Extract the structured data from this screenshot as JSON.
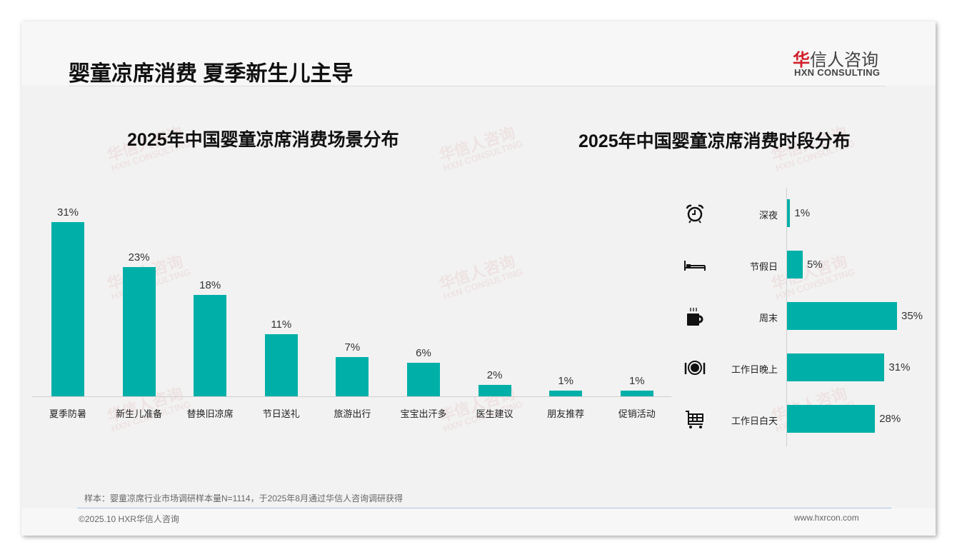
{
  "header": {
    "title": "婴童凉席消费 夏季新生儿主导",
    "logo_cn_red": "华",
    "logo_cn_rest": "信人咨询",
    "logo_en": "HXN CONSULTING"
  },
  "watermark": {
    "cn": "华信人咨询",
    "en": "HXN CONSULTING"
  },
  "chart_data": [
    {
      "type": "bar",
      "title": "2025年中国婴童凉席消费场景分布",
      "categories": [
        "夏季防暑",
        "新生儿准备",
        "替换旧凉席",
        "节日送礼",
        "旅游出行",
        "宝宝出汗多",
        "医生建议",
        "朋友推荐",
        "促销活动"
      ],
      "values": [
        31,
        23,
        18,
        11,
        7,
        6,
        2,
        1,
        1
      ],
      "unit": "%",
      "ylim": [
        0,
        35
      ]
    },
    {
      "type": "bar",
      "orientation": "horizontal",
      "title": "2025年中国婴童凉席消费时段分布",
      "categories": [
        "深夜",
        "节假日",
        "周末",
        "工作日晚上",
        "工作日白天"
      ],
      "icons": [
        "alarm-clock-icon",
        "bed-icon",
        "coffee-mug-icon",
        "plate-cutlery-icon",
        "shopping-cart-icon"
      ],
      "values": [
        1,
        5,
        35,
        31,
        28
      ],
      "unit": "%",
      "xlim": [
        0,
        40
      ]
    }
  ],
  "colors": {
    "bar": "#00b0a8",
    "logo_red": "#d0202a"
  },
  "footer": {
    "note": "样本：婴童凉席行业市场调研样本量N=1114，于2025年8月通过华信人咨询调研获得",
    "copyright": "©2025.10 HXR华信人咨询",
    "url": "www.hxrcon.com"
  }
}
